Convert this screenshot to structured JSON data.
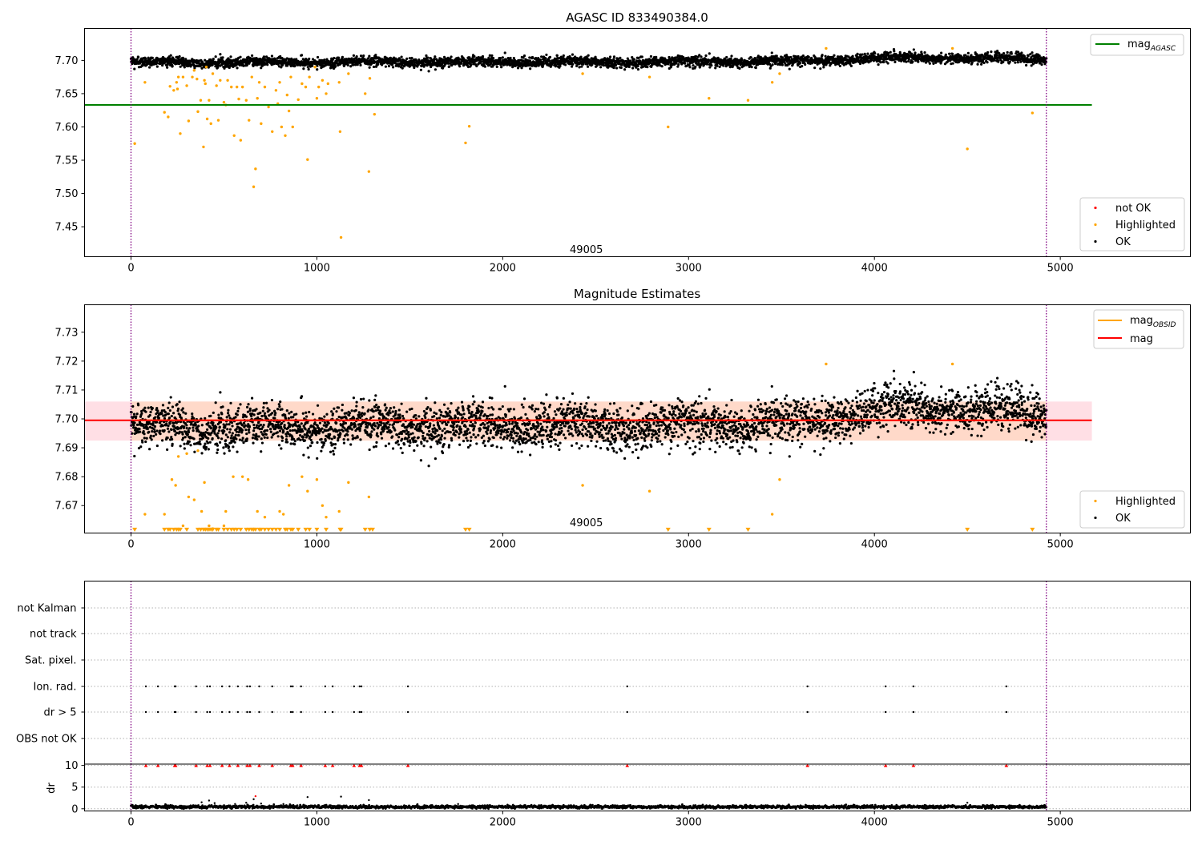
{
  "chart_data": [
    {
      "type": "scatter",
      "title": "AGASC ID 833490384.0",
      "x_range": [
        -250,
        5700
      ],
      "y_range": [
        7.405,
        7.748
      ],
      "x_ticks": [
        0,
        1000,
        2000,
        3000,
        4000,
        5000
      ],
      "y_ticks": [
        7.45,
        7.5,
        7.55,
        7.6,
        7.65,
        7.7
      ],
      "tick_decimals": 2,
      "vlines": [
        0,
        4925
      ],
      "hlines": [
        {
          "name": "mag_agasc",
          "y": 7.633,
          "x_start": -250,
          "x_end": 5170,
          "color": "#008000"
        }
      ],
      "annotation": {
        "text": "49005",
        "x": 2450,
        "y": 7.415
      },
      "legend_top": [
        {
          "label": "mag",
          "sub": "AGASC",
          "color": "#008000"
        }
      ],
      "legend_bottom": [
        {
          "label": "not OK",
          "color": "#ff0000"
        },
        {
          "label": "Highlighted",
          "color": "#ffa500"
        },
        {
          "label": "OK",
          "color": "#000000"
        }
      ],
      "series": [
        {
          "name": "OK",
          "color": "#000000",
          "generated": true,
          "n": 4000,
          "x_range": [
            0,
            4925
          ],
          "trend": [
            [
              0,
              7.697
            ],
            [
              3500,
              7.698
            ],
            [
              4100,
              7.704
            ],
            [
              4925,
              7.702
            ]
          ],
          "noise": 0.0038
        },
        {
          "name": "Highlighted",
          "color": "#ffa500",
          "points": [
            [
              20,
              7.575
            ],
            [
              75,
              7.667
            ],
            [
              180,
              7.622
            ],
            [
              200,
              7.615
            ],
            [
              210,
              7.661
            ],
            [
              230,
              7.655
            ],
            [
              245,
              7.667
            ],
            [
              250,
              7.657
            ],
            [
              255,
              7.675
            ],
            [
              265,
              7.59
            ],
            [
              280,
              7.675
            ],
            [
              300,
              7.662
            ],
            [
              310,
              7.609
            ],
            [
              330,
              7.675
            ],
            [
              340,
              7.685
            ],
            [
              355,
              7.672
            ],
            [
              360,
              7.623
            ],
            [
              375,
              7.64
            ],
            [
              390,
              7.57
            ],
            [
              395,
              7.67
            ],
            [
              400,
              7.665
            ],
            [
              405,
              7.69
            ],
            [
              410,
              7.612
            ],
            [
              420,
              7.64
            ],
            [
              430,
              7.605
            ],
            [
              440,
              7.68
            ],
            [
              460,
              7.662
            ],
            [
              470,
              7.61
            ],
            [
              480,
              7.67
            ],
            [
              500,
              7.637
            ],
            [
              510,
              7.633
            ],
            [
              520,
              7.67
            ],
            [
              540,
              7.66
            ],
            [
              555,
              7.587
            ],
            [
              570,
              7.66
            ],
            [
              580,
              7.642
            ],
            [
              590,
              7.58
            ],
            [
              600,
              7.66
            ],
            [
              620,
              7.64
            ],
            [
              635,
              7.61
            ],
            [
              650,
              7.675
            ],
            [
              660,
              7.51
            ],
            [
              670,
              7.537
            ],
            [
              680,
              7.643
            ],
            [
              690,
              7.667
            ],
            [
              700,
              7.605
            ],
            [
              720,
              7.66
            ],
            [
              740,
              7.63
            ],
            [
              760,
              7.593
            ],
            [
              780,
              7.655
            ],
            [
              790,
              7.635
            ],
            [
              800,
              7.667
            ],
            [
              810,
              7.6
            ],
            [
              830,
              7.587
            ],
            [
              840,
              7.648
            ],
            [
              850,
              7.624
            ],
            [
              860,
              7.675
            ],
            [
              870,
              7.6
            ],
            [
              900,
              7.641
            ],
            [
              920,
              7.665
            ],
            [
              940,
              7.66
            ],
            [
              950,
              7.551
            ],
            [
              960,
              7.675
            ],
            [
              990,
              7.69
            ],
            [
              1000,
              7.643
            ],
            [
              1010,
              7.66
            ],
            [
              1030,
              7.67
            ],
            [
              1050,
              7.65
            ],
            [
              1060,
              7.665
            ],
            [
              1120,
              7.667
            ],
            [
              1125,
              7.593
            ],
            [
              1130,
              7.434
            ],
            [
              1170,
              7.68
            ],
            [
              1260,
              7.65
            ],
            [
              1280,
              7.533
            ],
            [
              1285,
              7.673
            ],
            [
              1310,
              7.619
            ],
            [
              1800,
              7.576
            ],
            [
              1820,
              7.601
            ],
            [
              2430,
              7.68
            ],
            [
              2790,
              7.675
            ],
            [
              2890,
              7.6
            ],
            [
              3110,
              7.643
            ],
            [
              3320,
              7.64
            ],
            [
              3450,
              7.667
            ],
            [
              3490,
              7.68
            ],
            [
              3740,
              7.718
            ],
            [
              4420,
              7.718
            ],
            [
              4500,
              7.567
            ],
            [
              4850,
              7.621
            ]
          ]
        }
      ]
    },
    {
      "type": "scatter",
      "title": "Magnitude Estimates",
      "x_range": [
        -250,
        5700
      ],
      "y_range": [
        7.6605,
        7.7395
      ],
      "x_ticks": [
        0,
        1000,
        2000,
        3000,
        4000,
        5000
      ],
      "y_ticks": [
        7.67,
        7.68,
        7.69,
        7.7,
        7.71,
        7.72,
        7.73
      ],
      "tick_decimals": 2,
      "vlines": [
        0,
        4925
      ],
      "bands": [
        {
          "name": "mag_band",
          "y0": 7.6925,
          "y1": 7.706,
          "x_start": -250,
          "x_end": 5170,
          "color": "#ffc0cb"
        },
        {
          "name": "mag_obsid_band",
          "y0": 7.6925,
          "y1": 7.706,
          "x_start": 0,
          "x_end": 4925,
          "color": "#ffd3ad"
        }
      ],
      "hlines": [
        {
          "name": "mag_obsid",
          "y": 7.6995,
          "x_start": 0,
          "x_end": 4925,
          "color": "#ffa500"
        },
        {
          "name": "mag",
          "y": 7.6995,
          "x_start": -250,
          "x_end": 5170,
          "color": "#ff0000"
        }
      ],
      "annotation": {
        "text": "49005",
        "x": 2450,
        "y": 7.664
      },
      "legend_top": [
        {
          "label": "mag",
          "sub": "OBSID",
          "color": "#ffa500"
        },
        {
          "label": "mag",
          "sub": "",
          "color": "#ff0000"
        }
      ],
      "legend_bottom": [
        {
          "label": "Highlighted",
          "color": "#ffa500"
        },
        {
          "label": "OK",
          "color": "#000000"
        }
      ],
      "series": [
        {
          "name": "OK",
          "color": "#000000",
          "generated": true,
          "n": 4000,
          "x_range": [
            0,
            4925
          ],
          "trend": [
            [
              0,
              7.697
            ],
            [
              3500,
              7.698
            ],
            [
              4100,
              7.704
            ],
            [
              4925,
              7.702
            ]
          ],
          "noise": 0.0038
        },
        {
          "name": "Highlighted",
          "color": "#ffa500",
          "points": [
            [
              75,
              7.667
            ],
            [
              180,
              7.667
            ],
            [
              220,
              7.679
            ],
            [
              240,
              7.677
            ],
            [
              255,
              7.687
            ],
            [
              280,
              7.663
            ],
            [
              300,
              7.688
            ],
            [
              310,
              7.673
            ],
            [
              340,
              7.672
            ],
            [
              360,
              7.689
            ],
            [
              380,
              7.668
            ],
            [
              395,
              7.678
            ],
            [
              420,
              7.663
            ],
            [
              440,
              7.662
            ],
            [
              500,
              7.663
            ],
            [
              510,
              7.668
            ],
            [
              550,
              7.68
            ],
            [
              600,
              7.68
            ],
            [
              630,
              7.679
            ],
            [
              680,
              7.668
            ],
            [
              720,
              7.666
            ],
            [
              800,
              7.668
            ],
            [
              820,
              7.667
            ],
            [
              850,
              7.677
            ],
            [
              920,
              7.68
            ],
            [
              950,
              7.675
            ],
            [
              1000,
              7.679
            ],
            [
              1030,
              7.67
            ],
            [
              1050,
              7.666
            ],
            [
              1120,
              7.668
            ],
            [
              1170,
              7.678
            ],
            [
              1280,
              7.673
            ],
            [
              2430,
              7.677
            ],
            [
              2790,
              7.675
            ],
            [
              3450,
              7.667
            ],
            [
              3490,
              7.679
            ],
            [
              3740,
              7.719
            ],
            [
              4420,
              7.719
            ]
          ]
        },
        {
          "name": "Highlighted_below_range",
          "color": "#ffa500",
          "marker": "triangle_down",
          "y": 7.6615,
          "x": [
            20,
            180,
            200,
            210,
            230,
            245,
            255,
            265,
            300,
            360,
            375,
            390,
            400,
            410,
            420,
            430,
            440,
            460,
            470,
            500,
            520,
            540,
            555,
            570,
            590,
            620,
            635,
            650,
            660,
            670,
            690,
            700,
            720,
            740,
            760,
            780,
            800,
            830,
            840,
            860,
            870,
            900,
            940,
            960,
            1000,
            1050,
            1125,
            1130,
            1260,
            1285,
            1300,
            1800,
            1820,
            2890,
            3110,
            3320,
            4500,
            4850
          ]
        }
      ]
    },
    {
      "type": "scatter",
      "title": "",
      "x_range": [
        -250,
        5700
      ],
      "x_ticks": [
        0,
        1000,
        2000,
        3000,
        4000,
        5000
      ],
      "vlines": [
        0,
        4925
      ],
      "category_labels": [
        "not Kalman",
        "not track",
        "Sat. pixel.",
        "Ion. rad.",
        "dr > 5",
        "OBS not OK"
      ],
      "flag_events": {
        "Ion. rad.": [
          80,
          145,
          235,
          240,
          350,
          410,
          425,
          490,
          530,
          575,
          625,
          640,
          690,
          760,
          860,
          870,
          915,
          1045,
          1085,
          1200,
          1230,
          1240,
          1490,
          2670,
          3640,
          4060,
          4210,
          4710
        ],
        "dr > 5": [
          80,
          145,
          235,
          240,
          350,
          410,
          425,
          490,
          530,
          575,
          625,
          640,
          690,
          760,
          860,
          870,
          915,
          1045,
          1085,
          1200,
          1230,
          1240,
          1490,
          2670,
          3640,
          4060,
          4210,
          4710
        ]
      },
      "dr": {
        "ylabel": "dr",
        "y_range": [
          -0.5,
          10.3
        ],
        "y_ticks": [
          0,
          5,
          10
        ],
        "baseline_n": 2500,
        "x_range": [
          0,
          4925
        ],
        "baseline_level": 0.45,
        "spikes": [
          [
            380,
            1.5
          ],
          [
            420,
            1.9
          ],
          [
            450,
            1.3
          ],
          [
            560,
            1.1
          ],
          [
            620,
            1.4
          ],
          [
            660,
            2.2
          ],
          [
            670,
            2.9
          ],
          [
            700,
            1.2
          ],
          [
            820,
            1.1
          ],
          [
            950,
            2.7
          ],
          [
            1130,
            2.8
          ],
          [
            1280,
            2.0
          ],
          [
            1760,
            1.1
          ],
          [
            4500,
            1.4
          ]
        ],
        "clipped_marker_color": "#ff0000",
        "clipped_x": [
          80,
          145,
          235,
          240,
          350,
          410,
          425,
          490,
          530,
          575,
          625,
          640,
          690,
          760,
          860,
          870,
          915,
          1045,
          1085,
          1200,
          1230,
          1240,
          1490,
          2670,
          3640,
          4060,
          4210,
          4710
        ]
      }
    }
  ]
}
